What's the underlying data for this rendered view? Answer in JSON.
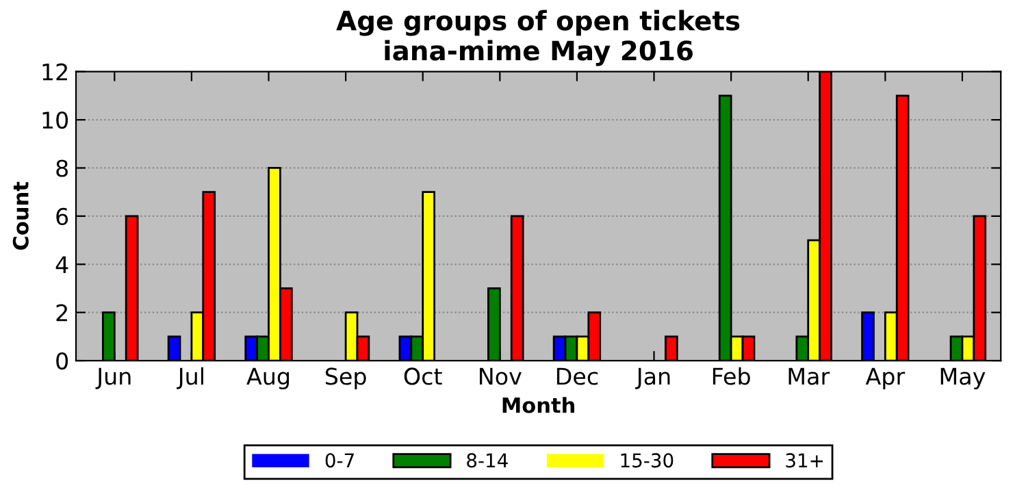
{
  "chart_data": {
    "type": "bar",
    "title": "Age groups of open tickets\niana-mime May 2016",
    "xlabel": "Month",
    "ylabel": "Count",
    "categories": [
      "Jun",
      "Jul",
      "Aug",
      "Sep",
      "Oct",
      "Nov",
      "Dec",
      "Jan",
      "Feb",
      "Mar",
      "Apr",
      "May"
    ],
    "series": [
      {
        "name": "0-7",
        "color": "#0000ff",
        "values": [
          0,
          1,
          1,
          0,
          1,
          0,
          1,
          0,
          0,
          0,
          2,
          0
        ]
      },
      {
        "name": "8-14",
        "color": "#008000",
        "values": [
          2,
          0,
          1,
          0,
          1,
          3,
          1,
          0,
          11,
          1,
          0,
          1
        ]
      },
      {
        "name": "15-30",
        "color": "#ffff00",
        "values": [
          0,
          2,
          8,
          2,
          7,
          0,
          1,
          0,
          1,
          5,
          2,
          1
        ]
      },
      {
        "name": "31+",
        "color": "#ff0000",
        "values": [
          6,
          7,
          3,
          1,
          0,
          6,
          2,
          1,
          1,
          12,
          11,
          6
        ]
      }
    ],
    "ylim": [
      0,
      12
    ],
    "yticks": [
      0,
      2,
      4,
      6,
      8,
      10,
      12
    ],
    "grid": "y",
    "legend": "bottom"
  }
}
